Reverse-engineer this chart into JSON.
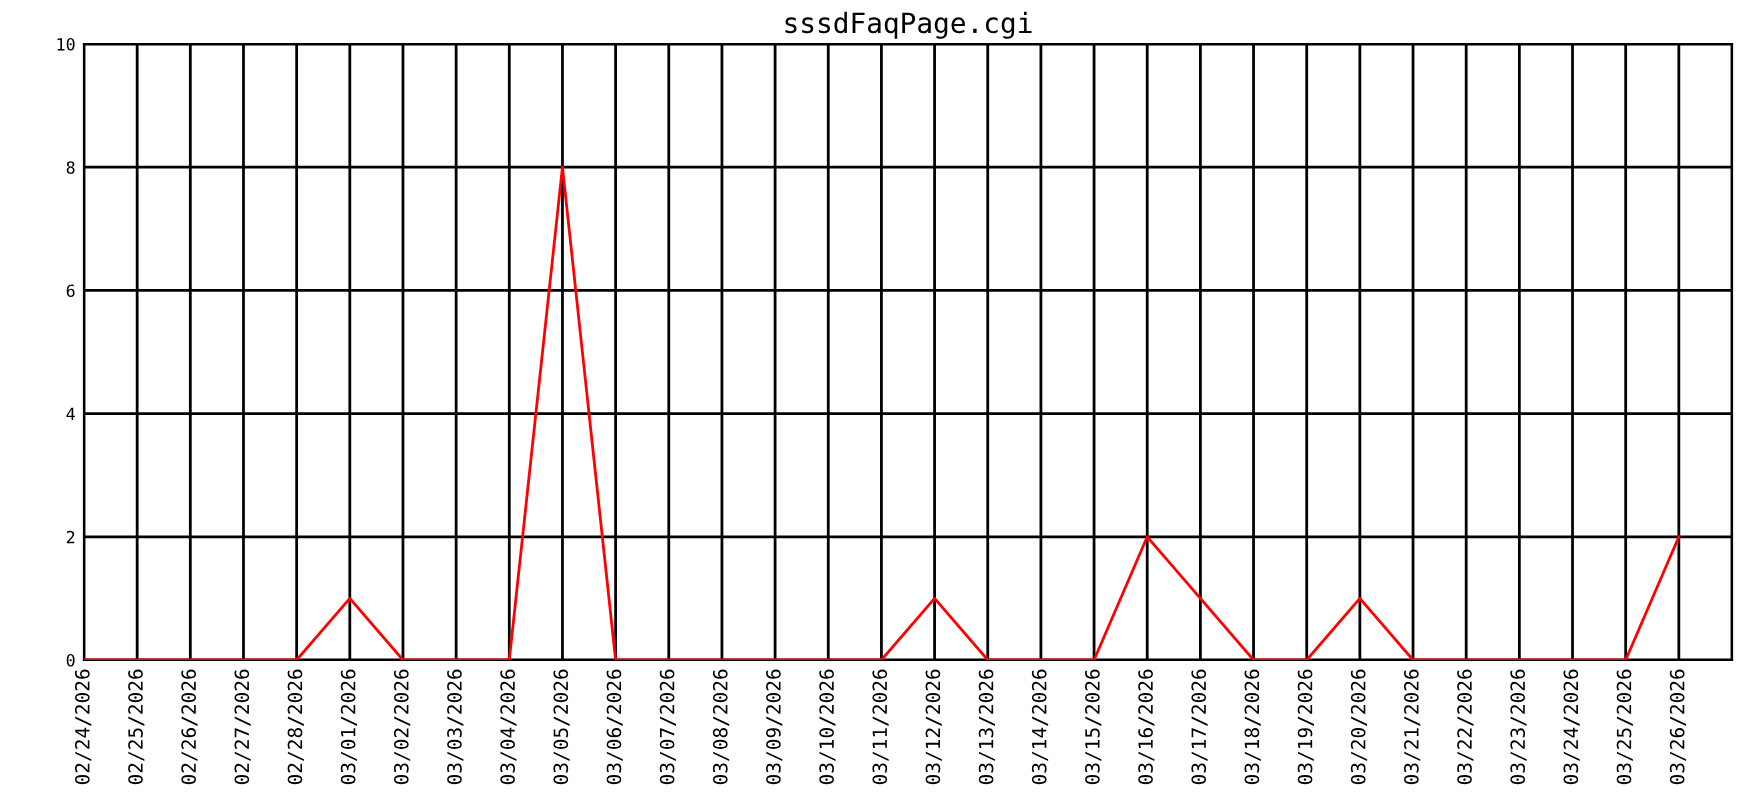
{
  "chart_data": {
    "type": "line",
    "title": "sssdFaqPage.cgi",
    "categories": [
      "02/24/2026",
      "02/25/2026",
      "02/26/2026",
      "02/27/2026",
      "02/28/2026",
      "03/01/2026",
      "03/02/2026",
      "03/03/2026",
      "03/04/2026",
      "03/05/2026",
      "03/06/2026",
      "03/07/2026",
      "03/08/2026",
      "03/09/2026",
      "03/10/2026",
      "03/11/2026",
      "03/12/2026",
      "03/13/2026",
      "03/14/2026",
      "03/15/2026",
      "03/16/2026",
      "03/17/2026",
      "03/18/2026",
      "03/19/2026",
      "03/20/2026",
      "03/21/2026",
      "03/22/2026",
      "03/23/2026",
      "03/24/2026",
      "03/25/2026",
      "03/26/2026"
    ],
    "series": [
      {
        "color": "#ff0000",
        "values": [
          0,
          0,
          0,
          0,
          0,
          1,
          0,
          0,
          0,
          8,
          0,
          0,
          0,
          0,
          0,
          0,
          1,
          0,
          0,
          0,
          2,
          1,
          0,
          0,
          1,
          0,
          0,
          0,
          0,
          0,
          2
        ]
      }
    ],
    "ylim": [
      0,
      10
    ],
    "yticks": [
      0,
      2,
      4,
      6,
      8,
      10
    ],
    "grid": true,
    "legend": false,
    "marker": "none",
    "line_style": "solid"
  }
}
